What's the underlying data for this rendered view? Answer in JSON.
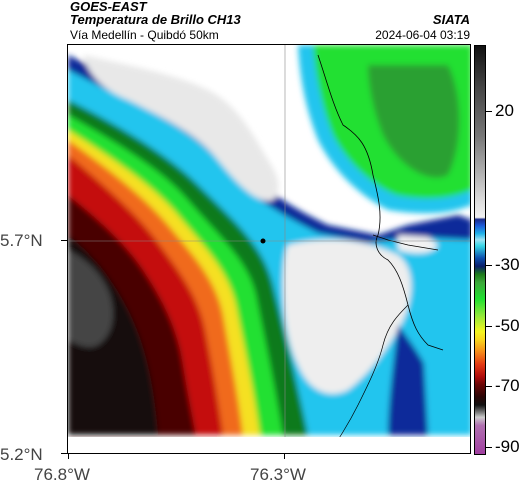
{
  "header": {
    "satellite": "GOES-EAST",
    "product": "Temperatura de Brillo CH13",
    "subtitle": "Vía Medellín - Quibdó 50km",
    "organization": "SIATA",
    "timestamp": "2024-06-04 03:19"
  },
  "axes": {
    "lat_ticks": [
      "5.7°N",
      "5.2°N"
    ],
    "lon_ticks": [
      "76.8°W",
      "76.3°W"
    ]
  },
  "colorbar": {
    "ticks": [
      "20",
      "-30",
      "-50",
      "-70",
      "-90"
    ]
  },
  "colors": {
    "cold": "#ffffff",
    "deep_cold": "#111111",
    "warm_red": "#d01010",
    "green": "#20e030",
    "cyan": "#21c5ee",
    "blue": "#0a2a9a"
  },
  "map": {
    "marker": "crosshair-center"
  }
}
